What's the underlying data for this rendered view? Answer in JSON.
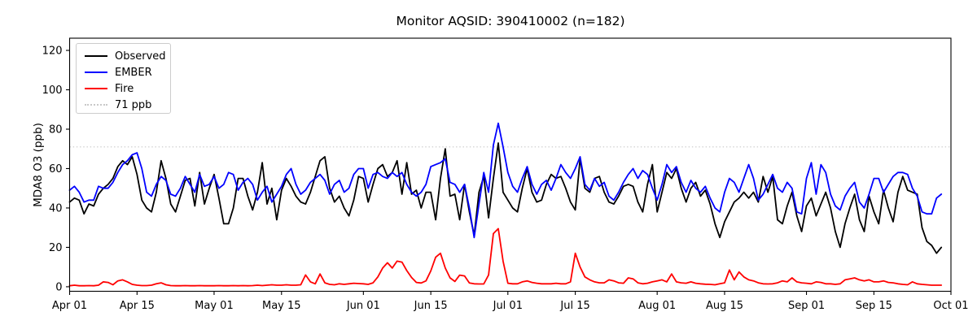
{
  "figure": {
    "monitor_aqsid": "390410002",
    "n": 182,
    "background": "#ffffff"
  },
  "chart_data": {
    "type": "line",
    "title": "Monitor AQSID: 390410002 (n=182)",
    "xlabel": "",
    "ylabel": "MDA8 O3 (ppb)",
    "grid": false,
    "legend_position": "upper left",
    "ylim": [
      -2.3,
      126.2
    ],
    "yticks": [
      0,
      20,
      40,
      60,
      80,
      100,
      120
    ],
    "x_total_days": 183,
    "x_note": "daily values, day 0 = Apr 01, series ends Sep 29 (182 points)",
    "xticks": [
      {
        "day": 0,
        "label": "Apr 01"
      },
      {
        "day": 14,
        "label": "Apr 15"
      },
      {
        "day": 30,
        "label": "May 01"
      },
      {
        "day": 44,
        "label": "May 15"
      },
      {
        "day": 61,
        "label": "Jun 01"
      },
      {
        "day": 75,
        "label": "Jun 15"
      },
      {
        "day": 91,
        "label": "Jul 01"
      },
      {
        "day": 105,
        "label": "Jul 15"
      },
      {
        "day": 122,
        "label": "Aug 01"
      },
      {
        "day": 136,
        "label": "Aug 15"
      },
      {
        "day": 153,
        "label": "Sep 01"
      },
      {
        "day": 167,
        "label": "Sep 15"
      },
      {
        "day": 183,
        "label": "Oct 01"
      }
    ],
    "threshold": {
      "label": "71 ppb",
      "value": 71,
      "color": "#c8c8c8",
      "style": "dotted"
    },
    "series": [
      {
        "name": "Observed",
        "color": "#000000",
        "values": [
          43,
          45,
          44,
          37,
          42,
          41,
          47,
          50,
          52,
          55,
          61,
          64,
          62,
          66,
          57,
          44,
          40,
          38,
          48,
          64,
          55,
          42,
          38,
          46,
          54,
          55,
          41,
          58,
          42,
          50,
          57,
          45,
          32,
          32,
          40,
          55,
          55,
          46,
          39,
          48,
          63,
          42,
          50,
          34,
          49,
          55,
          51,
          46,
          43,
          42,
          48,
          56,
          64,
          66,
          50,
          43,
          46,
          40,
          36,
          44,
          56,
          55,
          43,
          52,
          60,
          62,
          56,
          58,
          64,
          47,
          63,
          47,
          49,
          40,
          48,
          48,
          34,
          55,
          70,
          46,
          47,
          34,
          52,
          38,
          26,
          48,
          56,
          35,
          55,
          73,
          48,
          44,
          40,
          38,
          50,
          60,
          48,
          43,
          44,
          52,
          57,
          55,
          56,
          50,
          43,
          39,
          65,
          50,
          48,
          55,
          56,
          48,
          43,
          42,
          46,
          51,
          52,
          51,
          43,
          38,
          52,
          62,
          38,
          48,
          58,
          55,
          60,
          50,
          43,
          50,
          53,
          46,
          49,
          42,
          32,
          25,
          33,
          38,
          43,
          45,
          48,
          45,
          48,
          43,
          56,
          48,
          56,
          34,
          32,
          41,
          48,
          36,
          28,
          41,
          45,
          36,
          42,
          48,
          40,
          28,
          20,
          32,
          40,
          47,
          34,
          28,
          46,
          38,
          32,
          49,
          40,
          33,
          48,
          56,
          49,
          48,
          47,
          30,
          23,
          21,
          17,
          20
        ]
      },
      {
        "name": "EMBER",
        "color": "#0000ff",
        "values": [
          49,
          51,
          48,
          43,
          44,
          44,
          51,
          50,
          50,
          53,
          58,
          62,
          64,
          67,
          68,
          60,
          48,
          46,
          52,
          56,
          54,
          47,
          46,
          50,
          56,
          52,
          48,
          57,
          51,
          52,
          56,
          50,
          52,
          58,
          57,
          49,
          53,
          55,
          52,
          44,
          48,
          51,
          43,
          47,
          51,
          57,
          60,
          52,
          47,
          49,
          53,
          55,
          57,
          54,
          47,
          52,
          54,
          48,
          50,
          57,
          60,
          60,
          50,
          57,
          58,
          56,
          55,
          58,
          56,
          58,
          52,
          48,
          46,
          48,
          52,
          61,
          62,
          63,
          65,
          53,
          52,
          48,
          52,
          40,
          25,
          42,
          58,
          48,
          72,
          83,
          71,
          58,
          51,
          48,
          55,
          61,
          52,
          47,
          52,
          54,
          49,
          55,
          62,
          58,
          55,
          60,
          66,
          52,
          49,
          55,
          51,
          53,
          46,
          44,
          48,
          53,
          57,
          60,
          55,
          59,
          57,
          50,
          44,
          52,
          62,
          58,
          61,
          53,
          48,
          54,
          50,
          48,
          51,
          45,
          40,
          38,
          48,
          55,
          53,
          48,
          55,
          62,
          55,
          44,
          47,
          52,
          57,
          50,
          48,
          53,
          50,
          38,
          37,
          55,
          63,
          47,
          62,
          58,
          47,
          41,
          39,
          46,
          50,
          53,
          43,
          40,
          47,
          55,
          55,
          48,
          52,
          56,
          58,
          58,
          57,
          50,
          46,
          38,
          37,
          37,
          45,
          47
        ]
      },
      {
        "name": "Fire",
        "color": "#ff0000",
        "values": [
          0.5,
          0.8,
          0.5,
          0.5,
          0.6,
          0.5,
          0.8,
          2.5,
          2.2,
          1,
          3,
          3.5,
          2.5,
          1.2,
          0.8,
          0.6,
          0.6,
          0.8,
          1.5,
          2,
          1,
          0.6,
          0.5,
          0.5,
          0.6,
          0.5,
          0.5,
          0.6,
          0.5,
          0.5,
          0.5,
          0.6,
          0.5,
          0.5,
          0.6,
          0.5,
          0.6,
          0.5,
          0.6,
          0.8,
          0.6,
          0.8,
          1,
          0.8,
          0.8,
          1,
          0.8,
          0.8,
          1,
          6,
          2.5,
          1.5,
          6.5,
          2,
          1.2,
          1,
          1.5,
          1.2,
          1.5,
          1.8,
          1.6,
          1.5,
          1.2,
          2,
          5,
          9.5,
          12.2,
          9.5,
          13,
          12.5,
          8.2,
          4.7,
          2.2,
          1.9,
          3,
          8,
          15,
          17,
          9.5,
          4.5,
          2.7,
          5.9,
          5.5,
          1.9,
          1.5,
          1.4,
          1.4,
          6,
          27,
          29.5,
          13,
          1.8,
          1.5,
          1.5,
          2.5,
          3,
          2.2,
          1.8,
          1.5,
          1.5,
          1.5,
          1.8,
          1.5,
          1.5,
          2.5,
          17,
          10,
          5,
          3.5,
          2.5,
          2,
          2,
          3.5,
          3,
          2,
          1.8,
          4.5,
          4,
          2,
          1.5,
          1.8,
          2.5,
          3,
          3.5,
          2.5,
          6.5,
          2.5,
          2,
          1.8,
          2.5,
          1.8,
          1.5,
          1.3,
          1.2,
          1,
          1.5,
          2,
          8.5,
          3.5,
          7.5,
          5,
          3.5,
          3,
          2,
          1.5,
          1.4,
          1.5,
          2,
          3,
          2.5,
          4.5,
          2.5,
          2,
          1.8,
          1.5,
          2.5,
          2.2,
          1.5,
          1.5,
          1.2,
          1.5,
          3.5,
          4,
          4.5,
          3.5,
          3,
          3.5,
          2.5,
          2.5,
          3,
          2.2,
          2,
          1.5,
          1.2,
          1,
          2.5,
          1.5,
          1.2,
          1,
          0.8,
          0.8,
          0.8
        ]
      }
    ]
  }
}
